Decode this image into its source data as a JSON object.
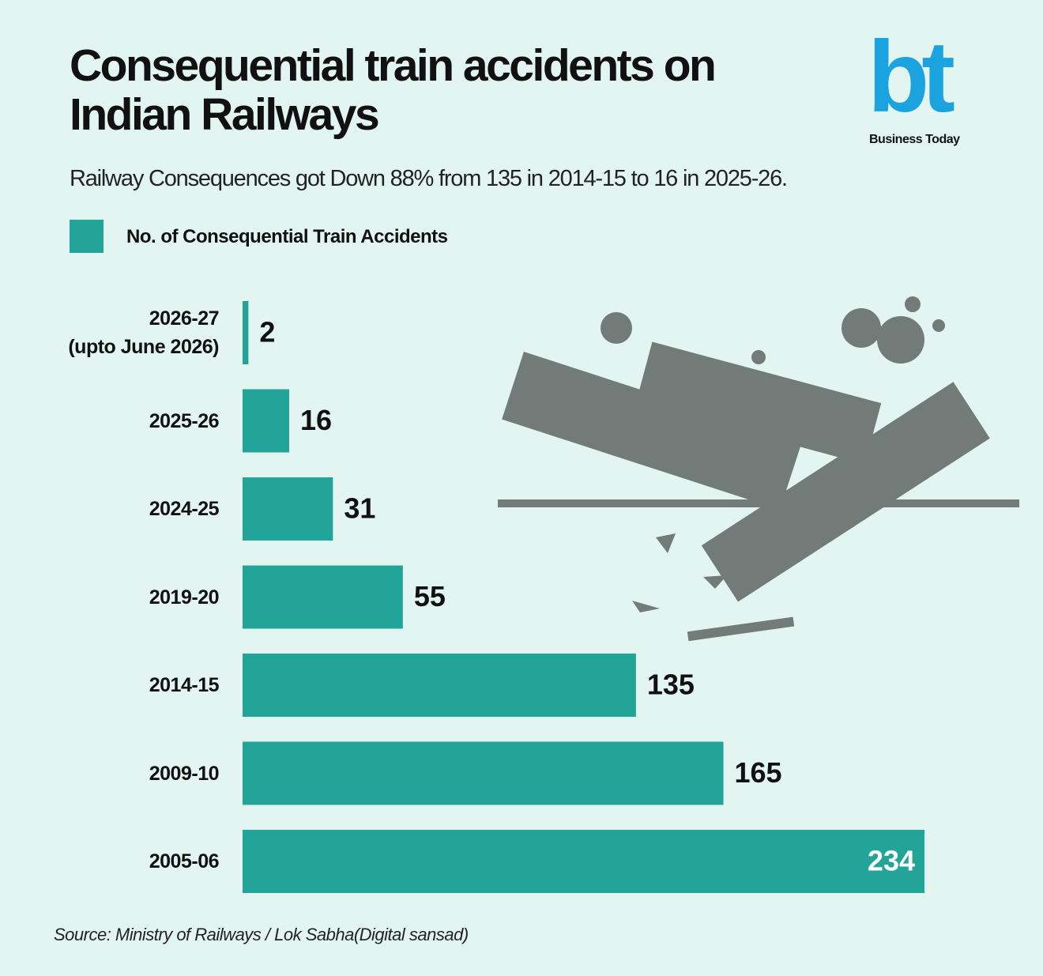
{
  "chart_data": {
    "type": "bar",
    "orientation": "horizontal",
    "title": "Consequential train accidents on Indian Railways",
    "subtitle": "Railway Consequences got Down 88% from 135 in 2014-15 to 16 in 2025-26.",
    "legend_label": "No. of Consequential Train Accidents",
    "categories": [
      "2026-27\n(upto June 2026)",
      "2025-26",
      "2024-25",
      "2019-20",
      "2014-15",
      "2009-10",
      "2005-06"
    ],
    "values": [
      2,
      16,
      31,
      55,
      135,
      165,
      234
    ],
    "color": "#22a598",
    "source": "Source: Ministry of Railways / Lok Sabha(Digital sansad)",
    "logo": {
      "mark": "bt",
      "name": "Business Today"
    }
  }
}
